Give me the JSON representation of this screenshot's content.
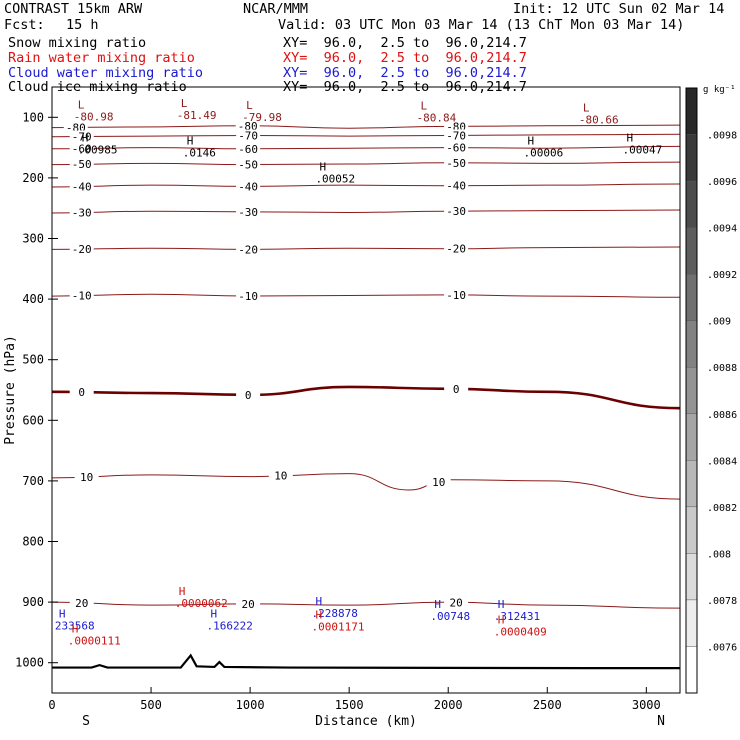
{
  "header": {
    "model": "CONTRAST 15km ARW",
    "center": "NCAR/MMM",
    "init": "Init: 12 UTC Sun 02 Mar 14",
    "fcst_label": "Fcst:",
    "fcst_value": "15 h",
    "valid": "Valid: 03 UTC Mon 03 Mar 14 (13 ChT Mon 03 Mar 14)"
  },
  "fields": [
    {
      "name": "Snow mixing ratio",
      "xy": "XY=  96.0,  2.5 to  96.0,214.7",
      "color": "#000000"
    },
    {
      "name": "Rain water mixing ratio",
      "xy": "XY=  96.0,  2.5 to  96.0,214.7",
      "color": "#e01010"
    },
    {
      "name": "Cloud water mixing ratio",
      "xy": "XY=  96.0,  2.5 to  96.0,214.7",
      "color": "#1a1ad0"
    },
    {
      "name": "Cloud ice mixing ratio",
      "xy": "XY=  96.0,  2.5 to  96.0,214.7",
      "color": "#000000"
    }
  ],
  "chart_data": {
    "type": "contour",
    "xlabel": "Distance (km)",
    "ylabel": "Pressure (hPa)",
    "x_ticks": [
      0,
      500,
      1000,
      1500,
      2000,
      2500,
      3000
    ],
    "y_ticks": [
      100,
      200,
      300,
      400,
      500,
      600,
      700,
      800,
      900,
      1000
    ],
    "xlim": [
      0,
      3170
    ],
    "ylim": [
      50,
      1050
    ],
    "x_end_labels": {
      "left": "S",
      "right": "N"
    },
    "colorbar": {
      "unit": "g kg⁻¹",
      "ticks": [
        ".0098",
        ".0096",
        ".0094",
        ".0092",
        ".009",
        ".0088",
        ".0086",
        ".0084",
        ".0082",
        ".008",
        ".0078",
        ".0076"
      ],
      "values": [
        0.0098,
        0.0096,
        0.0094,
        0.0092,
        0.009,
        0.0088,
        0.0086,
        0.0084,
        0.0082,
        0.008,
        0.0078,
        0.0076
      ]
    },
    "temperature_contours": [
      {
        "label": "-80",
        "level": -80,
        "points": [
          [
            0,
            117
          ],
          [
            400,
            116
          ],
          [
            1000,
            114
          ],
          [
            1500,
            118
          ],
          [
            2000,
            115
          ],
          [
            2500,
            114
          ],
          [
            3170,
            113
          ]
        ]
      },
      {
        "label": "-70",
        "level": -70,
        "points": [
          [
            0,
            132
          ],
          [
            500,
            131
          ],
          [
            1000,
            130
          ],
          [
            1500,
            131
          ],
          [
            2000,
            130
          ],
          [
            2500,
            129
          ],
          [
            3170,
            128
          ]
        ]
      },
      {
        "label": "-60",
        "level": -60,
        "points": [
          [
            0,
            152
          ],
          [
            500,
            150
          ],
          [
            1000,
            152
          ],
          [
            1500,
            151
          ],
          [
            2000,
            150
          ],
          [
            2500,
            151
          ],
          [
            3170,
            148
          ]
        ]
      },
      {
        "label": "-50",
        "level": -50,
        "points": [
          [
            0,
            178
          ],
          [
            500,
            176
          ],
          [
            1000,
            178
          ],
          [
            1500,
            177
          ],
          [
            2000,
            175
          ],
          [
            2500,
            176
          ],
          [
            3170,
            174
          ]
        ]
      },
      {
        "label": "-40",
        "level": -40,
        "points": [
          [
            0,
            215
          ],
          [
            500,
            212
          ],
          [
            1000,
            214
          ],
          [
            1500,
            212
          ],
          [
            2000,
            213
          ],
          [
            2500,
            212
          ],
          [
            3170,
            210
          ]
        ]
      },
      {
        "label": "-30",
        "level": -30,
        "points": [
          [
            0,
            258
          ],
          [
            500,
            255
          ],
          [
            1000,
            256
          ],
          [
            1500,
            257
          ],
          [
            2000,
            255
          ],
          [
            2500,
            254
          ],
          [
            3170,
            253
          ]
        ]
      },
      {
        "label": "-20",
        "level": -20,
        "points": [
          [
            0,
            318
          ],
          [
            500,
            316
          ],
          [
            1000,
            318
          ],
          [
            1500,
            316
          ],
          [
            2000,
            317
          ],
          [
            2500,
            315
          ],
          [
            3170,
            314
          ]
        ]
      },
      {
        "label": "-10",
        "level": -10,
        "points": [
          [
            0,
            395
          ],
          [
            500,
            392
          ],
          [
            1000,
            395
          ],
          [
            1500,
            394
          ],
          [
            2000,
            393
          ],
          [
            2500,
            395
          ],
          [
            3170,
            397
          ]
        ]
      },
      {
        "label": "0",
        "level": 0,
        "points": [
          [
            0,
            553
          ],
          [
            500,
            555
          ],
          [
            1000,
            558
          ],
          [
            1500,
            545
          ],
          [
            2000,
            548
          ],
          [
            2500,
            553
          ],
          [
            3170,
            580
          ]
        ]
      },
      {
        "label": "10",
        "level": 10,
        "points": [
          [
            0,
            695
          ],
          [
            500,
            690
          ],
          [
            1000,
            693
          ],
          [
            1500,
            688
          ],
          [
            1800,
            715
          ],
          [
            2000,
            698
          ],
          [
            2500,
            700
          ],
          [
            3170,
            730
          ]
        ]
      },
      {
        "label": "20",
        "level": 20,
        "points": [
          [
            0,
            900
          ],
          [
            500,
            905
          ],
          [
            1000,
            903
          ],
          [
            1500,
            905
          ],
          [
            2000,
            900
          ],
          [
            2500,
            905
          ],
          [
            3170,
            910
          ]
        ]
      }
    ],
    "extrema": [
      {
        "type": "L",
        "value": "-80.98",
        "x": 130,
        "p": 95
      },
      {
        "type": "L",
        "value": "-81.49",
        "x": 650,
        "p": 93
      },
      {
        "type": "L",
        "value": "-79.98",
        "x": 980,
        "p": 96
      },
      {
        "type": "L",
        "value": "-80.84",
        "x": 1860,
        "p": 97
      },
      {
        "type": "L",
        "value": "-80.66",
        "x": 2680,
        "p": 100
      },
      {
        "type": "H",
        "value": ".00985",
        "x": 150,
        "p": 150
      },
      {
        "type": "H",
        "value": ".0146",
        "x": 680,
        "p": 155
      },
      {
        "type": "H",
        "value": ".00052",
        "x": 1350,
        "p": 198
      },
      {
        "type": "H",
        "value": ".00006",
        "x": 2400,
        "p": 155
      },
      {
        "type": "H",
        "value": ".00047",
        "x": 2900,
        "p": 150
      },
      {
        "type": "H",
        "value": "233568",
        "x": 35,
        "p": 935
      },
      {
        "type": "H",
        "value": ".0000111",
        "x": 100,
        "p": 960
      },
      {
        "type": "H",
        "value": ".0000062",
        "x": 640,
        "p": 898
      },
      {
        "type": "H",
        "value": ".166222",
        "x": 800,
        "p": 935
      },
      {
        "type": "H",
        "value": ".228878",
        "x": 1330,
        "p": 915
      },
      {
        "type": "H",
        "value": ".0001171",
        "x": 1330,
        "p": 937
      },
      {
        "type": "H",
        "value": ".00748",
        "x": 1930,
        "p": 920
      },
      {
        "type": "H",
        "value": ".312431",
        "x": 2250,
        "p": 920
      },
      {
        "type": "H",
        "value": ".0000409",
        "x": 2250,
        "p": 945
      }
    ]
  }
}
